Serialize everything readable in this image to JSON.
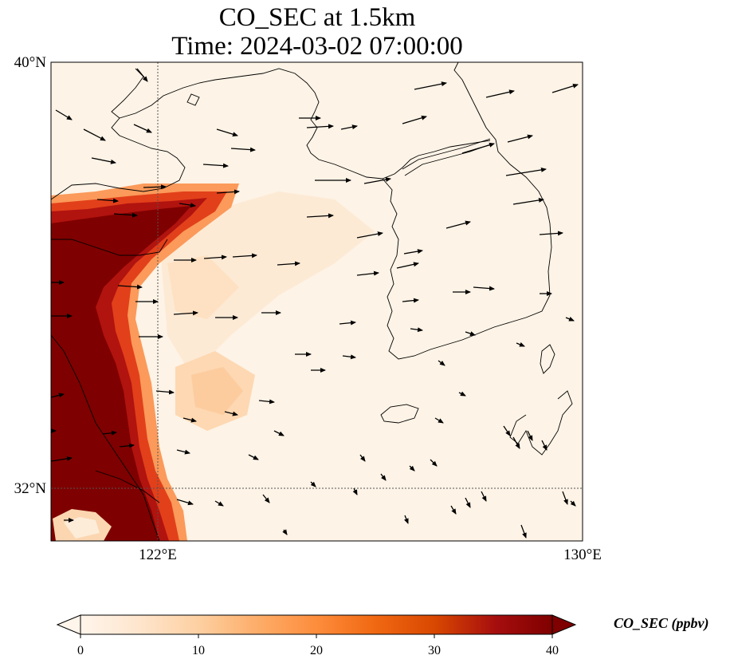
{
  "title": "CO_SEC at 1.5km",
  "subtitle": "Time: 2024-03-02 07:00:00",
  "axes": {
    "lat_ticks": [
      {
        "value": 40,
        "label": "40°N"
      },
      {
        "value": 32,
        "label": "32°N"
      }
    ],
    "lon_ticks": [
      {
        "value": 122,
        "label": "122°E"
      },
      {
        "value": 130,
        "label": "130°E"
      }
    ],
    "extent": {
      "lon_min": 120,
      "lon_max": 130,
      "lat_min": 31,
      "lat_max": 40
    },
    "gridlines": "dotted at 122°E and 32°N"
  },
  "colorbar": {
    "label": "CO_SEC (ppbv)",
    "min": 0,
    "max": 40,
    "extend": "both",
    "ticks": [
      {
        "value": 0,
        "label": "0"
      },
      {
        "value": 10,
        "label": "10"
      },
      {
        "value": 20,
        "label": "20"
      },
      {
        "value": 30,
        "label": "30"
      },
      {
        "value": 40,
        "label": "40"
      }
    ],
    "colormap": [
      "#fff5eb",
      "#fee6ce",
      "#fdd0a2",
      "#fdae6b",
      "#fd8d3c",
      "#f16913",
      "#d94801",
      "#a60e0e",
      "#7f0000"
    ]
  },
  "field": {
    "description_regions": [
      {
        "name": "western-high",
        "value_range": [
          35,
          40
        ]
      },
      {
        "name": "yellow-sea-plume",
        "value_range": [
          6,
          14
        ]
      },
      {
        "name": "background",
        "value_range": [
          0,
          3
        ]
      }
    ]
  },
  "wind_vectors": "dominant westerly flow over the Yellow Sea and Korea, southerly-southeasterly in the southeast"
}
